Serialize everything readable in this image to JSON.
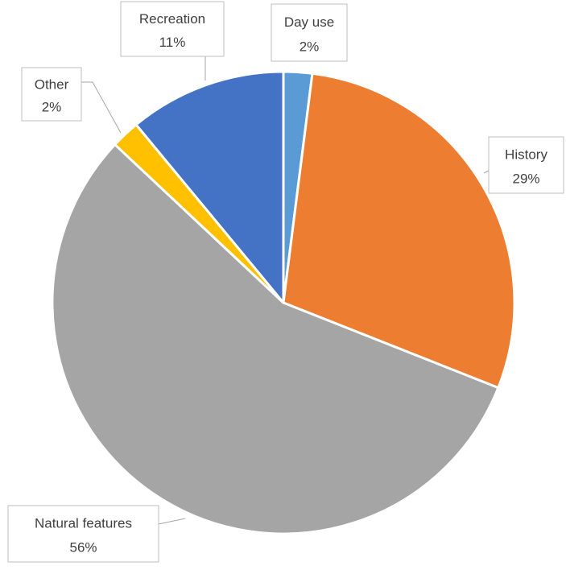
{
  "chart_data": {
    "type": "pie",
    "categories": [
      "Day use",
      "History",
      "Natural features",
      "Other",
      "Recreation"
    ],
    "values": [
      2,
      29,
      56,
      2,
      11
    ],
    "value_labels": [
      "2%",
      "29%",
      "56%",
      "2%",
      "11%"
    ],
    "colors": [
      "#5b9bd5",
      "#ed7d31",
      "#a5a5a5",
      "#ffc000",
      "#4472c4"
    ]
  }
}
